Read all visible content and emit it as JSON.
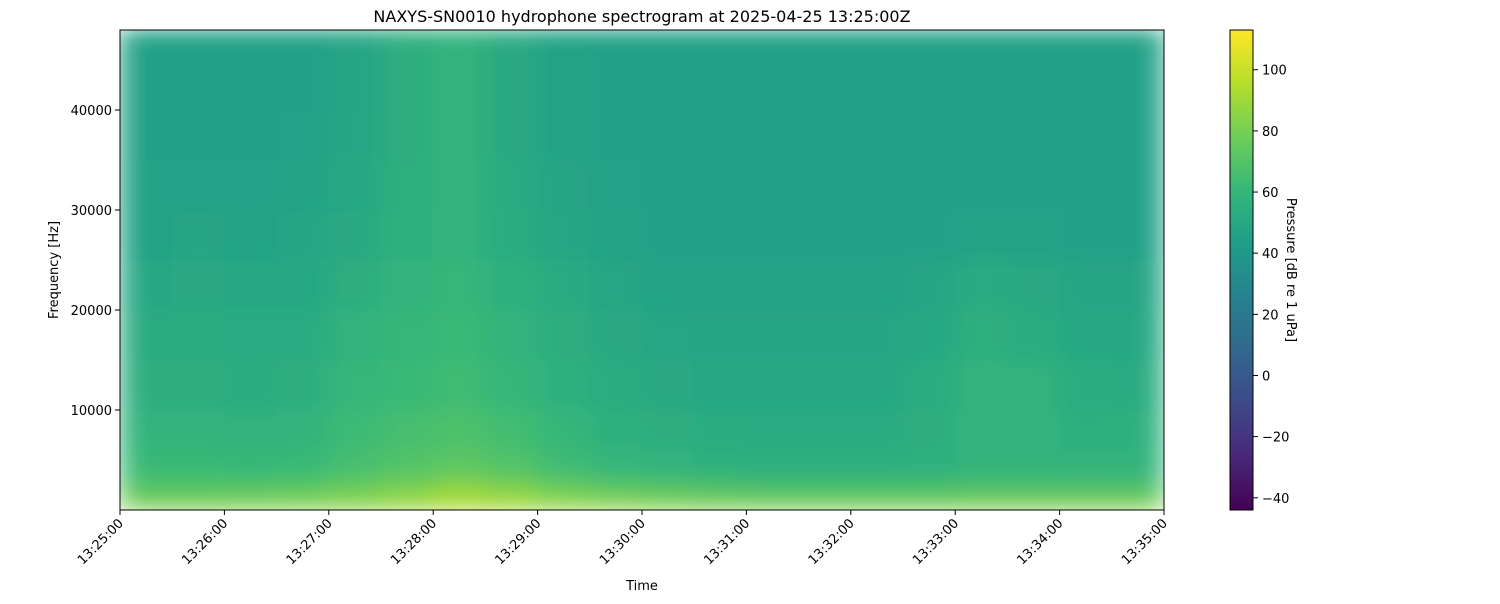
{
  "chart_data": {
    "type": "heatmap",
    "title": "NAXYS-SN0010 hydrophone spectrogram at 2025-04-25 13:25:00Z",
    "xlabel": "Time",
    "ylabel": "Frequency [Hz]",
    "colorbar_label": "Pressure [dB re 1 uPa]",
    "colormap": "viridis",
    "xlim": [
      "13:25:00",
      "13:35:00"
    ],
    "ylim": [
      0,
      48000
    ],
    "clim": [
      -44,
      113
    ],
    "x_ticks": [
      "13:25:00",
      "13:26:00",
      "13:27:00",
      "13:28:00",
      "13:29:00",
      "13:30:00",
      "13:31:00",
      "13:32:00",
      "13:33:00",
      "13:34:00",
      "13:35:00"
    ],
    "y_ticks": [
      10000,
      20000,
      30000,
      40000
    ],
    "y_tick_labels": [
      "10000",
      "20000",
      "30000",
      "40000"
    ],
    "colorbar_ticks": [
      -40,
      -20,
      0,
      20,
      40,
      60,
      80,
      100
    ],
    "colorbar_tick_labels": [
      "−40",
      "−20",
      "0",
      "20",
      "40",
      "60",
      "80",
      "100"
    ],
    "time_bin_seconds": 30,
    "frequency_bin_edges_hz": [
      0,
      1000,
      3000,
      6000,
      10000,
      15000,
      20000,
      25000,
      30000,
      35000,
      40000,
      48000
    ],
    "values_db": [
      [
        84,
        84,
        85,
        86,
        88,
        92,
        96,
        94,
        90,
        88,
        86,
        85,
        84,
        84,
        84,
        84,
        85,
        85,
        85,
        85
      ],
      [
        72,
        72,
        73,
        74,
        78,
        82,
        88,
        84,
        78,
        74,
        72,
        70,
        68,
        68,
        68,
        68,
        70,
        70,
        70,
        70
      ],
      [
        62,
        62,
        61,
        62,
        66,
        70,
        73,
        70,
        64,
        60,
        58,
        56,
        55,
        55,
        55,
        56,
        58,
        58,
        57,
        58
      ],
      [
        58,
        58,
        57,
        58,
        63,
        66,
        68,
        65,
        60,
        56,
        54,
        53,
        52,
        52,
        52,
        54,
        58,
        58,
        55,
        56
      ],
      [
        54,
        54,
        53,
        54,
        60,
        62,
        64,
        60,
        56,
        53,
        51,
        50,
        50,
        50,
        50,
        53,
        58,
        57,
        53,
        52
      ],
      [
        52,
        53,
        52,
        52,
        58,
        60,
        62,
        58,
        54,
        51,
        49,
        48,
        48,
        48,
        48,
        50,
        55,
        53,
        50,
        50
      ],
      [
        50,
        51,
        50,
        50,
        54,
        58,
        60,
        56,
        52,
        49,
        47,
        47,
        47,
        47,
        47,
        48,
        52,
        51,
        48,
        48
      ],
      [
        47,
        48,
        47,
        48,
        51,
        56,
        58,
        53,
        49,
        47,
        45,
        45,
        45,
        45,
        45,
        45,
        47,
        47,
        45,
        45
      ],
      [
        46,
        46,
        46,
        47,
        50,
        55,
        58,
        52,
        48,
        46,
        45,
        45,
        45,
        45,
        45,
        45,
        45,
        45,
        45,
        45
      ],
      [
        45,
        45,
        45,
        46,
        49,
        54,
        58,
        51,
        47,
        45,
        45,
        45,
        45,
        45,
        45,
        45,
        45,
        45,
        45,
        45
      ],
      [
        45,
        45,
        45,
        45,
        48,
        54,
        58,
        51,
        47,
        45,
        45,
        45,
        45,
        45,
        45,
        45,
        45,
        45,
        45,
        45
      ]
    ]
  }
}
